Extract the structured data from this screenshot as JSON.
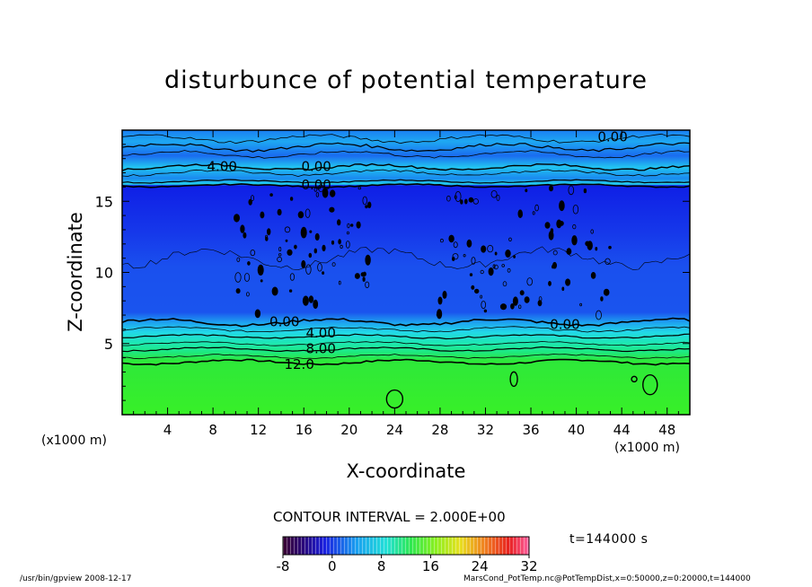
{
  "title": "disturbunce of potential temperature",
  "axes": {
    "xlabel": "X-coordinate",
    "ylabel": "Z-coordinate",
    "x_unit_left": "(x1000 m)",
    "x_unit_right": "(x1000 m)"
  },
  "contour_interval": "CONTOUR INTERVAL = 2.000E+00",
  "time_label": "t=144000 s",
  "footer": {
    "left": "/usr/bin/gpview   2008-12-17",
    "right": "MarsCond_PotTemp.nc@PotTempDist,x=0:50000,z=0:20000,t=144000"
  },
  "colorbar": {
    "min": -8,
    "max": 32,
    "ticks": [
      "-8",
      "0",
      "8",
      "16",
      "24",
      "32"
    ]
  },
  "colors": {
    "deep_blue": "#0f1fe6",
    "mid_blue": "#1560f0",
    "light_blue": "#1ea0f0",
    "cyan": "#22d8e8",
    "teal": "#1ee8b0",
    "green": "#2ee83a",
    "lime": "#38f028"
  },
  "chart_data": {
    "type": "heatmap",
    "title": "disturbunce of potential temperature",
    "xlabel": "X-coordinate",
    "ylabel": "Z-coordinate",
    "xlim": [
      0,
      50
    ],
    "ylim": [
      0,
      20
    ],
    "x_ticks": [
      "4",
      "8",
      "12",
      "16",
      "20",
      "24",
      "28",
      "32",
      "36",
      "40",
      "44",
      "48"
    ],
    "y_ticks": [
      "5",
      "10",
      "15"
    ],
    "contour_labels": [
      {
        "text": "4.00",
        "x": 8.8,
        "z": 17.5
      },
      {
        "text": "0.00",
        "x": 17.1,
        "z": 17.5
      },
      {
        "text": "0.00",
        "x": 17.1,
        "z": 16.2
      },
      {
        "text": "0.00",
        "x": 43.2,
        "z": 19.6
      },
      {
        "text": "0.00",
        "x": 14.3,
        "z": 6.6
      },
      {
        "text": "0.00",
        "x": 39.0,
        "z": 6.4
      },
      {
        "text": "4.00",
        "x": 17.5,
        "z": 5.8
      },
      {
        "text": "8.00",
        "x": 17.5,
        "z": 4.7
      },
      {
        "text": "12.0",
        "x": 15.6,
        "z": 3.6
      }
    ],
    "vertical_profile": [
      {
        "z": 0,
        "value": 18
      },
      {
        "z": 3.7,
        "value": 14
      },
      {
        "z": 4.6,
        "value": 10
      },
      {
        "z": 5.5,
        "value": 6
      },
      {
        "z": 6.5,
        "value": 0
      },
      {
        "z": 11,
        "value": -4
      },
      {
        "z": 16.1,
        "value": -6
      },
      {
        "z": 16.4,
        "value": 0
      },
      {
        "z": 17.4,
        "value": 3
      },
      {
        "z": 18.3,
        "value": 4
      },
      {
        "z": 20,
        "value": -1
      }
    ]
  }
}
